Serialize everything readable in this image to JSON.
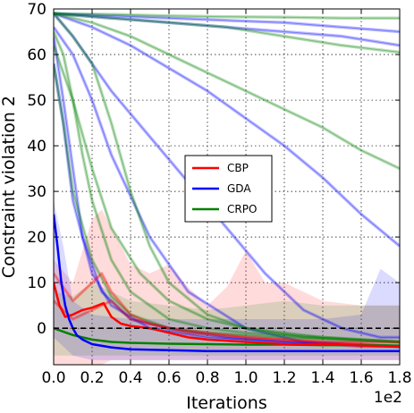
{
  "chart_data": {
    "type": "line",
    "title": "",
    "xlabel": "Iterations",
    "ylabel": "Constraint violation 2",
    "x_multiplier_label": "1e2",
    "xlim": [
      0.0,
      1.8
    ],
    "ylim": [
      -8,
      70
    ],
    "xticks": [
      "0.0",
      "0.2",
      "0.4",
      "0.6",
      "0.8",
      "1.0",
      "1.2",
      "1.4",
      "1.6",
      "1.8"
    ],
    "yticks": [
      "0",
      "10",
      "20",
      "30",
      "40",
      "50",
      "60",
      "70"
    ],
    "grid": true,
    "legend_position": "center",
    "reference_line": {
      "y": 0,
      "style": "dashed",
      "color": "#000000"
    },
    "series": [
      {
        "name": "CBP",
        "color": "#ff0000",
        "x": [
          0,
          0.03,
          0.06,
          0.1,
          0.15,
          0.2,
          0.26,
          0.3,
          0.35,
          0.4,
          0.5,
          0.6,
          0.7,
          0.8,
          1.0,
          1.2,
          1.4,
          1.6,
          1.8
        ],
        "y": [
          10,
          5,
          2.5,
          3,
          4,
          4.5,
          5.5,
          2.5,
          1,
          0.5,
          0,
          -1,
          -2,
          -2.5,
          -3,
          -3.5,
          -3.5,
          -3.8,
          -4
        ]
      },
      {
        "name": "GDA",
        "color": "#0000ff",
        "x": [
          0,
          0.02,
          0.04,
          0.06,
          0.08,
          0.1,
          0.12,
          0.15,
          0.2,
          0.3,
          0.4,
          0.6,
          0.8,
          1.0,
          1.2,
          1.4,
          1.6,
          1.8
        ],
        "y": [
          25,
          18,
          10,
          5,
          2,
          0,
          -1.5,
          -2.5,
          -3.5,
          -4.2,
          -4.6,
          -4.8,
          -5,
          -5,
          -5,
          -5,
          -5,
          -5
        ]
      },
      {
        "name": "CRPO",
        "color": "#008000",
        "x": [
          0,
          0.1,
          0.2,
          0.3,
          0.4,
          0.6,
          0.8,
          1.0,
          1.2,
          1.4,
          1.6,
          1.8
        ],
        "y": [
          0,
          -1.5,
          -2.5,
          -3,
          -3.2,
          -3.4,
          -3.5,
          -3.6,
          -3.6,
          -3.7,
          -3.7,
          -3.8
        ]
      }
    ],
    "faint_runs": [
      {
        "series": "GDA",
        "x": [
          0,
          0.1,
          0.2,
          0.3,
          0.5,
          0.7,
          1.0,
          1.3,
          1.6,
          1.8
        ],
        "y": [
          66,
          60,
          50,
          38,
          20,
          8,
          0,
          -3,
          -4,
          -4
        ]
      },
      {
        "series": "GDA",
        "x": [
          0,
          0.1,
          0.2,
          0.3,
          0.5,
          0.7,
          0.9,
          1.1,
          1.3,
          1.5,
          1.7,
          1.8
        ],
        "y": [
          69,
          64,
          58,
          52,
          42,
          32,
          22,
          12,
          4,
          0,
          -2,
          -2
        ]
      },
      {
        "series": "GDA",
        "x": [
          0,
          0.2,
          0.4,
          0.6,
          0.8,
          1.0,
          1.2,
          1.4,
          1.6,
          1.8
        ],
        "y": [
          69,
          66,
          62,
          57,
          52,
          46,
          40,
          33,
          25,
          18
        ]
      },
      {
        "series": "GDA",
        "x": [
          0,
          0.3,
          0.6,
          0.9,
          1.2,
          1.5,
          1.8
        ],
        "y": [
          69,
          68,
          67,
          66,
          65,
          64,
          62
        ]
      },
      {
        "series": "GDA",
        "x": [
          0,
          0.05,
          0.1,
          0.15,
          0.25,
          0.4,
          0.6,
          0.9,
          1.2,
          1.8
        ],
        "y": [
          64,
          50,
          35,
          20,
          8,
          2,
          0,
          -2,
          -3,
          -4
        ]
      },
      {
        "series": "GDA",
        "x": [
          0,
          0.05,
          0.1,
          0.2,
          0.3,
          0.5,
          0.8,
          1.2,
          1.8
        ],
        "y": [
          58,
          45,
          28,
          12,
          5,
          0,
          -2,
          -3,
          -4
        ]
      },
      {
        "series": "GDA",
        "x": [
          0,
          0.3,
          0.6,
          0.9,
          1.2,
          1.5,
          1.8
        ],
        "y": [
          69,
          68.5,
          68,
          67.5,
          67,
          66,
          65
        ]
      },
      {
        "series": "CRPO",
        "x": [
          0,
          0.3,
          0.6,
          0.9,
          1.2,
          1.5,
          1.8
        ],
        "y": [
          69,
          68.8,
          68.5,
          68.3,
          68.2,
          68,
          68
        ]
      },
      {
        "series": "CRPO",
        "x": [
          0,
          0.3,
          0.6,
          0.9,
          1.2,
          1.5,
          1.8
        ],
        "y": [
          69,
          68,
          67,
          66,
          64,
          62,
          60.5
        ]
      },
      {
        "series": "CRPO",
        "x": [
          0,
          0.2,
          0.4,
          0.6,
          0.8,
          1.0,
          1.2,
          1.4,
          1.6,
          1.8
        ],
        "y": [
          69,
          67,
          64,
          60,
          56,
          52,
          48,
          44,
          39,
          35
        ]
      },
      {
        "series": "CRPO",
        "x": [
          0,
          0.05,
          0.1,
          0.15,
          0.2,
          0.3,
          0.4,
          0.6,
          0.8,
          1.0,
          1.4,
          1.8
        ],
        "y": [
          65,
          60,
          50,
          38,
          28,
          15,
          8,
          2,
          0,
          -1,
          -2,
          -3
        ]
      },
      {
        "series": "CRPO",
        "x": [
          0,
          0.05,
          0.1,
          0.2,
          0.3,
          0.4,
          0.6,
          0.8,
          1.2,
          1.8
        ],
        "y": [
          58,
          45,
          30,
          15,
          7,
          3,
          0,
          -1,
          -2,
          -3
        ]
      },
      {
        "series": "CRPO",
        "x": [
          0,
          0.1,
          0.2,
          0.3,
          0.4,
          0.5,
          0.6,
          0.8,
          1.0,
          1.4,
          1.8
        ],
        "y": [
          69,
          64,
          58,
          45,
          30,
          18,
          10,
          3,
          0,
          -2,
          -3
        ]
      },
      {
        "series": "CRPO",
        "x": [
          0,
          0.1,
          0.2,
          0.3,
          0.45,
          0.6,
          0.8,
          1.0,
          1.3,
          1.8
        ],
        "y": [
          62,
          50,
          35,
          22,
          12,
          6,
          2,
          0,
          -2,
          -3
        ]
      },
      {
        "series": "CBP",
        "x": [
          0,
          0.1,
          0.2,
          0.25,
          0.3,
          0.4,
          0.5,
          0.7,
          1.0,
          1.4,
          1.8
        ],
        "y": [
          12,
          6,
          10,
          12,
          8,
          3,
          1,
          -1,
          -2,
          -3,
          -3
        ]
      },
      {
        "series": "CBP",
        "x": [
          0,
          0.1,
          0.2,
          0.3,
          0.4,
          0.6,
          0.8,
          1.0,
          1.4,
          1.8
        ],
        "y": [
          6,
          2,
          4,
          6,
          2,
          0,
          -1,
          -2,
          -3,
          -4
        ]
      }
    ],
    "shaded_bands": [
      {
        "series": "CBP",
        "x": [
          0,
          0.1,
          0.2,
          0.25,
          0.3,
          0.4,
          0.5,
          0.6,
          0.7,
          0.8,
          0.9,
          1.0,
          1.1,
          1.2,
          1.4,
          1.6,
          1.8
        ],
        "upper": [
          15,
          10,
          24,
          26,
          22,
          14,
          12,
          14,
          9,
          5,
          9,
          17,
          10,
          10,
          6,
          5,
          5
        ],
        "lower": [
          -8,
          -8,
          -8,
          -8,
          -7,
          -7,
          -7,
          -7,
          -7,
          -7,
          -7,
          -7,
          -7,
          -7,
          -7,
          -7,
          -7
        ]
      },
      {
        "series": "GDA",
        "x": [
          0,
          0.05,
          0.1,
          0.2,
          0.4,
          0.6,
          0.8,
          1.0,
          1.2,
          1.4,
          1.6,
          1.7,
          1.8
        ],
        "upper": [
          28,
          18,
          6,
          3,
          2,
          2,
          2,
          2,
          2,
          2,
          3,
          13,
          10
        ],
        "lower": [
          -2,
          -4,
          -6,
          -7,
          -7,
          -7,
          -7,
          -7,
          -7,
          -7,
          -7,
          -7,
          -7
        ]
      },
      {
        "series": "CRPO",
        "x": [
          0,
          0.1,
          0.2,
          0.4,
          0.6,
          0.8,
          1.0,
          1.2,
          1.4,
          1.6,
          1.8
        ],
        "upper": [
          8,
          7,
          10,
          6,
          5,
          4,
          5,
          6,
          5,
          5,
          5
        ],
        "lower": [
          -6,
          -6,
          -6,
          -6,
          -6,
          -6,
          -6,
          -6,
          -6,
          -6,
          -6
        ]
      }
    ]
  }
}
